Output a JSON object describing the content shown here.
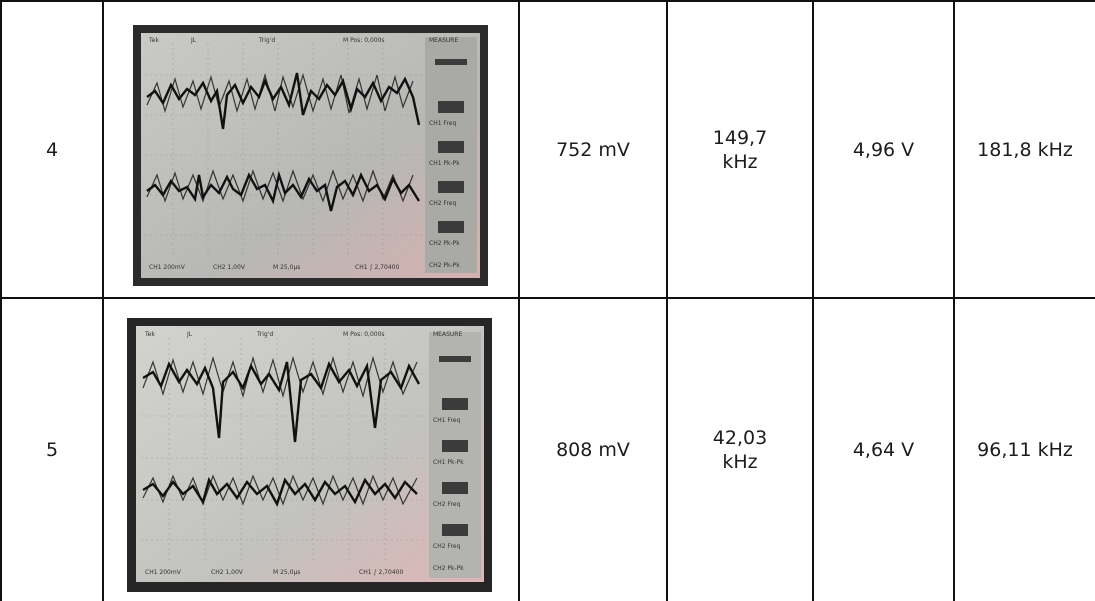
{
  "table": {
    "rows": [
      {
        "index": "4",
        "voltage_1": "752 mV",
        "frequency_1": "149,7\nkHz",
        "voltage_2": "4,96 V",
        "frequency_2": "181,8 kHz",
        "photo": {
          "header": [
            "Tek",
            "JL",
            "Trig'd",
            "M Pos: 0,000s",
            "MEASURE"
          ],
          "menu": [
            "CH1 Freq",
            "CH1 Pk-Pk",
            "CH2 Freq",
            "CH2 Pk-Pk",
            "CH2 Pk-Pk"
          ],
          "footer": [
            "CH1 200mV",
            "CH2 1,00V",
            "M 25,0µs",
            "CH1 ∫ 2,70400"
          ]
        }
      },
      {
        "index": "5",
        "voltage_1": "808 mV",
        "frequency_1": "42,03\nkHz",
        "voltage_2": "4,64 V",
        "frequency_2": "96,11 kHz",
        "photo": {
          "header": [
            "Tek",
            "JL",
            "Trig'd",
            "M Pos: 0,000s",
            "MEASURE"
          ],
          "menu": [
            "CH1 Freq",
            "CH1 Pk-Pk",
            "CH2 Freq",
            "CH2 Freq",
            "CH2 Pk-Pk"
          ],
          "footer": [
            "CH1 200mV",
            "CH2 1,00V",
            "M 25,0µs",
            "CH1 ∫ 2,70400"
          ]
        }
      }
    ]
  }
}
